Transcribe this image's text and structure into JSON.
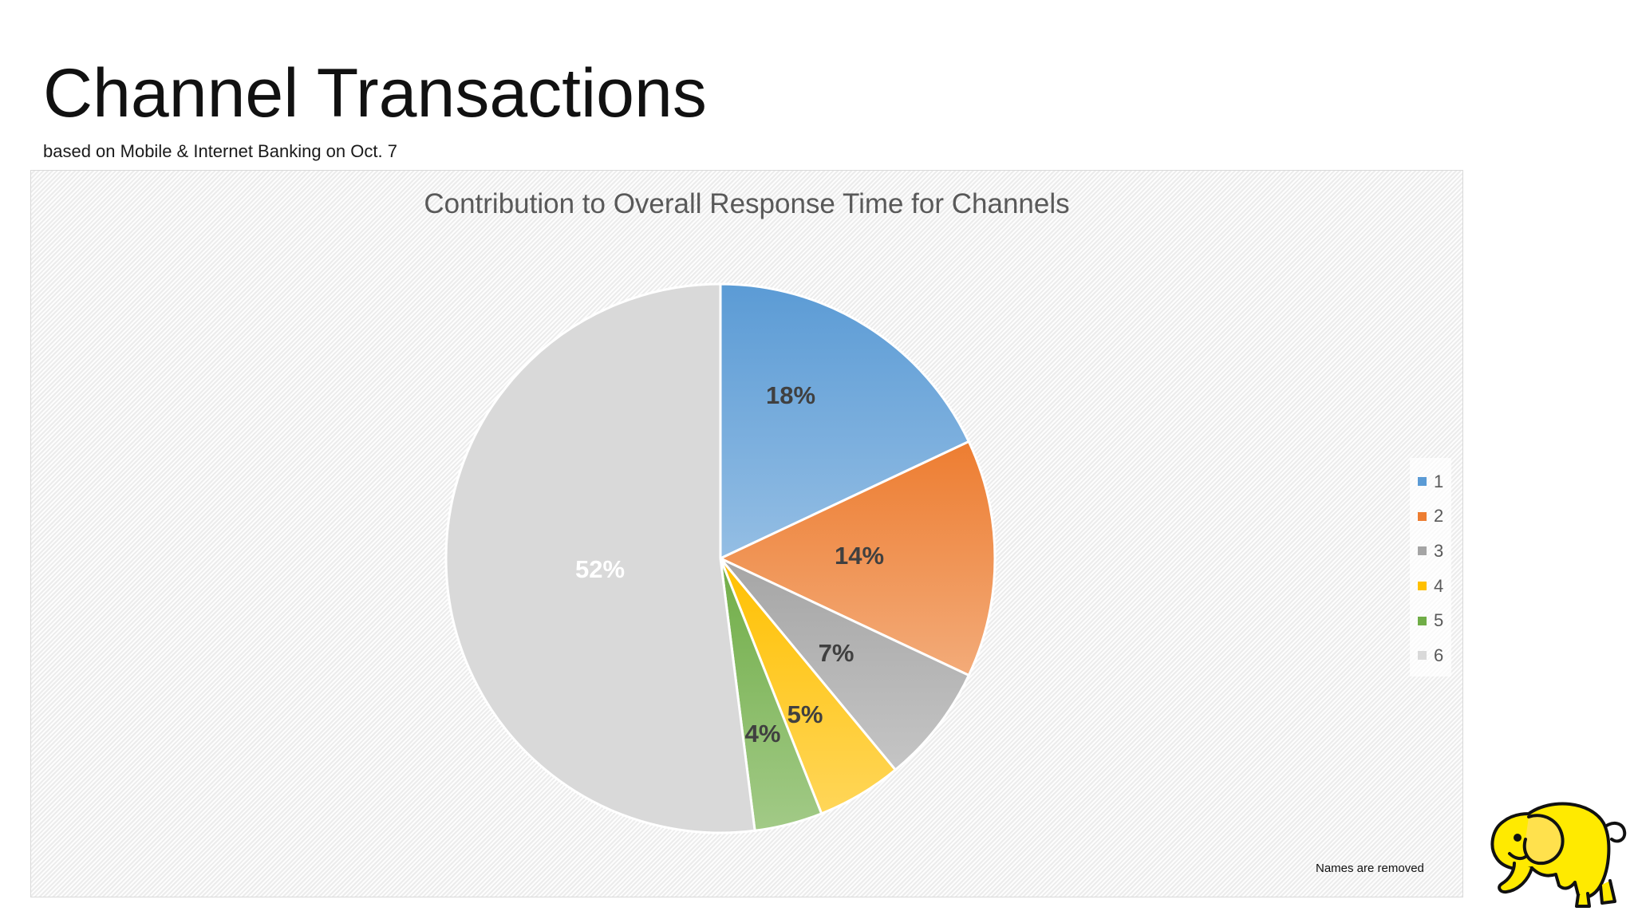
{
  "slide": {
    "title": "Channel Transactions",
    "subtitle": "based on Mobile & Internet Banking on Oct. 7",
    "footnote": "Names are removed"
  },
  "logo": {
    "icon": "yellow-elephant-logo",
    "color": "#ffea00"
  },
  "chart_data": {
    "type": "pie",
    "title": "Contribution to Overall Response Time for Channels",
    "categories": [
      "1",
      "2",
      "3",
      "4",
      "5",
      "6"
    ],
    "values": [
      18,
      14,
      7,
      5,
      4,
      52
    ],
    "labels": [
      "18%",
      "14%",
      "7%",
      "5%",
      "4%",
      "52%"
    ],
    "colors": [
      "#5b9bd5",
      "#ed7d31",
      "#a5a5a5",
      "#ffc000",
      "#70ad47",
      "#d9d9d9"
    ],
    "legend_position": "right",
    "start_angle": "12 o'clock",
    "direction": "clockwise"
  }
}
